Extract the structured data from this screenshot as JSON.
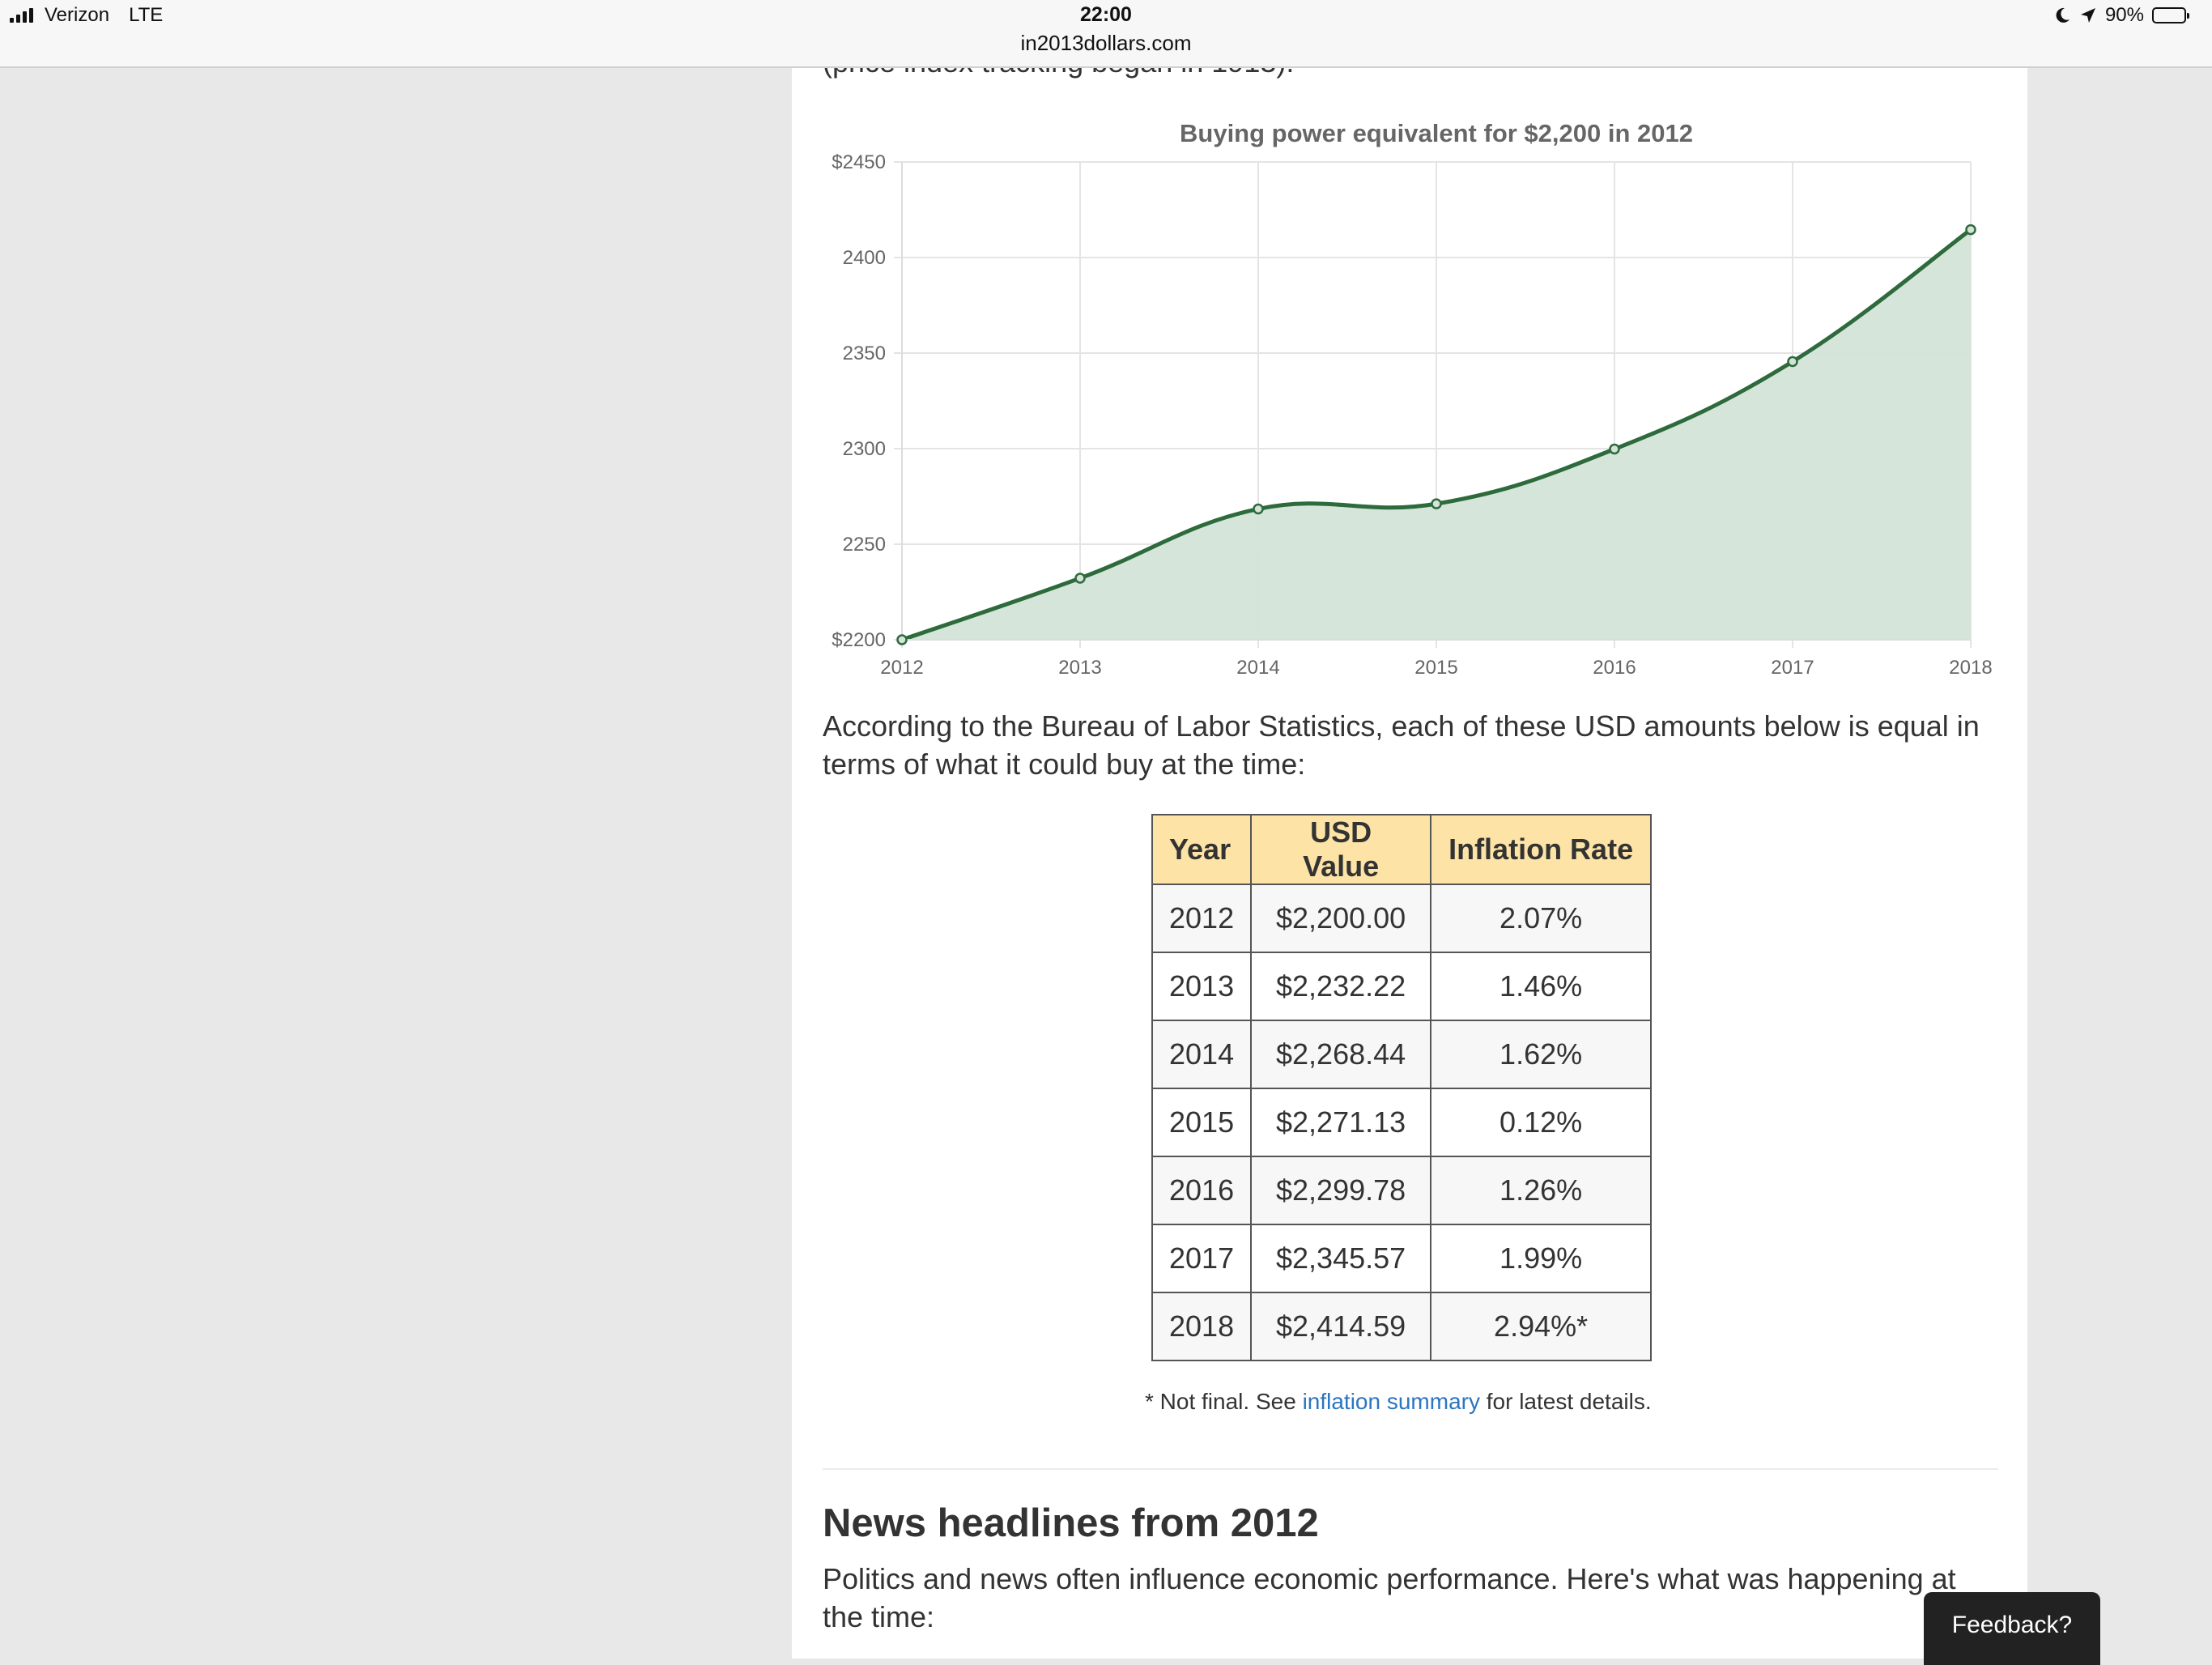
{
  "status_bar": {
    "carrier": "Verizon",
    "network": "LTE",
    "time": "22:00",
    "url": "in2013dollars.com",
    "battery_text": "90%",
    "battery_level": 0.9,
    "icons": [
      "signal-bars-icon",
      "moon-icon",
      "location-arrow-icon",
      "battery-icon"
    ]
  },
  "page": {
    "cut_off_text": "(price index tracking began in 1913).",
    "intro": "According to the Bureau of Labor Statistics, each of these USD amounts below is equal in terms of what it could buy at the time:",
    "table": {
      "headers": [
        "Year",
        "USD Value",
        "Inflation Rate"
      ],
      "rows": [
        [
          "2012",
          "$2,200.00",
          "2.07%"
        ],
        [
          "2013",
          "$2,232.22",
          "1.46%"
        ],
        [
          "2014",
          "$2,268.44",
          "1.62%"
        ],
        [
          "2015",
          "$2,271.13",
          "0.12%"
        ],
        [
          "2016",
          "$2,299.78",
          "1.26%"
        ],
        [
          "2017",
          "$2,345.57",
          "1.99%"
        ],
        [
          "2018",
          "$2,414.59",
          "2.94%*"
        ]
      ]
    },
    "footnote": {
      "prefix": "* Not final. See ",
      "link": "inflation summary",
      "suffix": " for latest details."
    },
    "news_heading": "News headlines from 2012",
    "news_intro": "Politics and news often influence economic performance. Here's what was happening at the time:"
  },
  "feedback_label": "Feedback?",
  "colors": {
    "line": "#2d6a3c",
    "area": "#d4e4d8",
    "grid": "#e4e4e4",
    "table_header": "#fde4a6",
    "link": "#2b75c2"
  },
  "chart_data": {
    "type": "area",
    "title": "Buying power equivalent for $2,200 in 2012",
    "x": [
      "2012",
      "2013",
      "2014",
      "2015",
      "2016",
      "2017",
      "2018"
    ],
    "series": [
      {
        "values": [
          2200.0,
          2232.22,
          2268.44,
          2271.13,
          2299.78,
          2345.57,
          2414.59
        ]
      }
    ],
    "ylim": [
      2200,
      2450
    ],
    "yticks": [
      2200,
      2250,
      2300,
      2350,
      2400,
      2450
    ],
    "ytick_labels": [
      "$2200",
      "2250",
      "2300",
      "2350",
      "2400",
      "$2450"
    ],
    "xlabel": "",
    "ylabel": "",
    "grid": true,
    "legend": "none"
  }
}
